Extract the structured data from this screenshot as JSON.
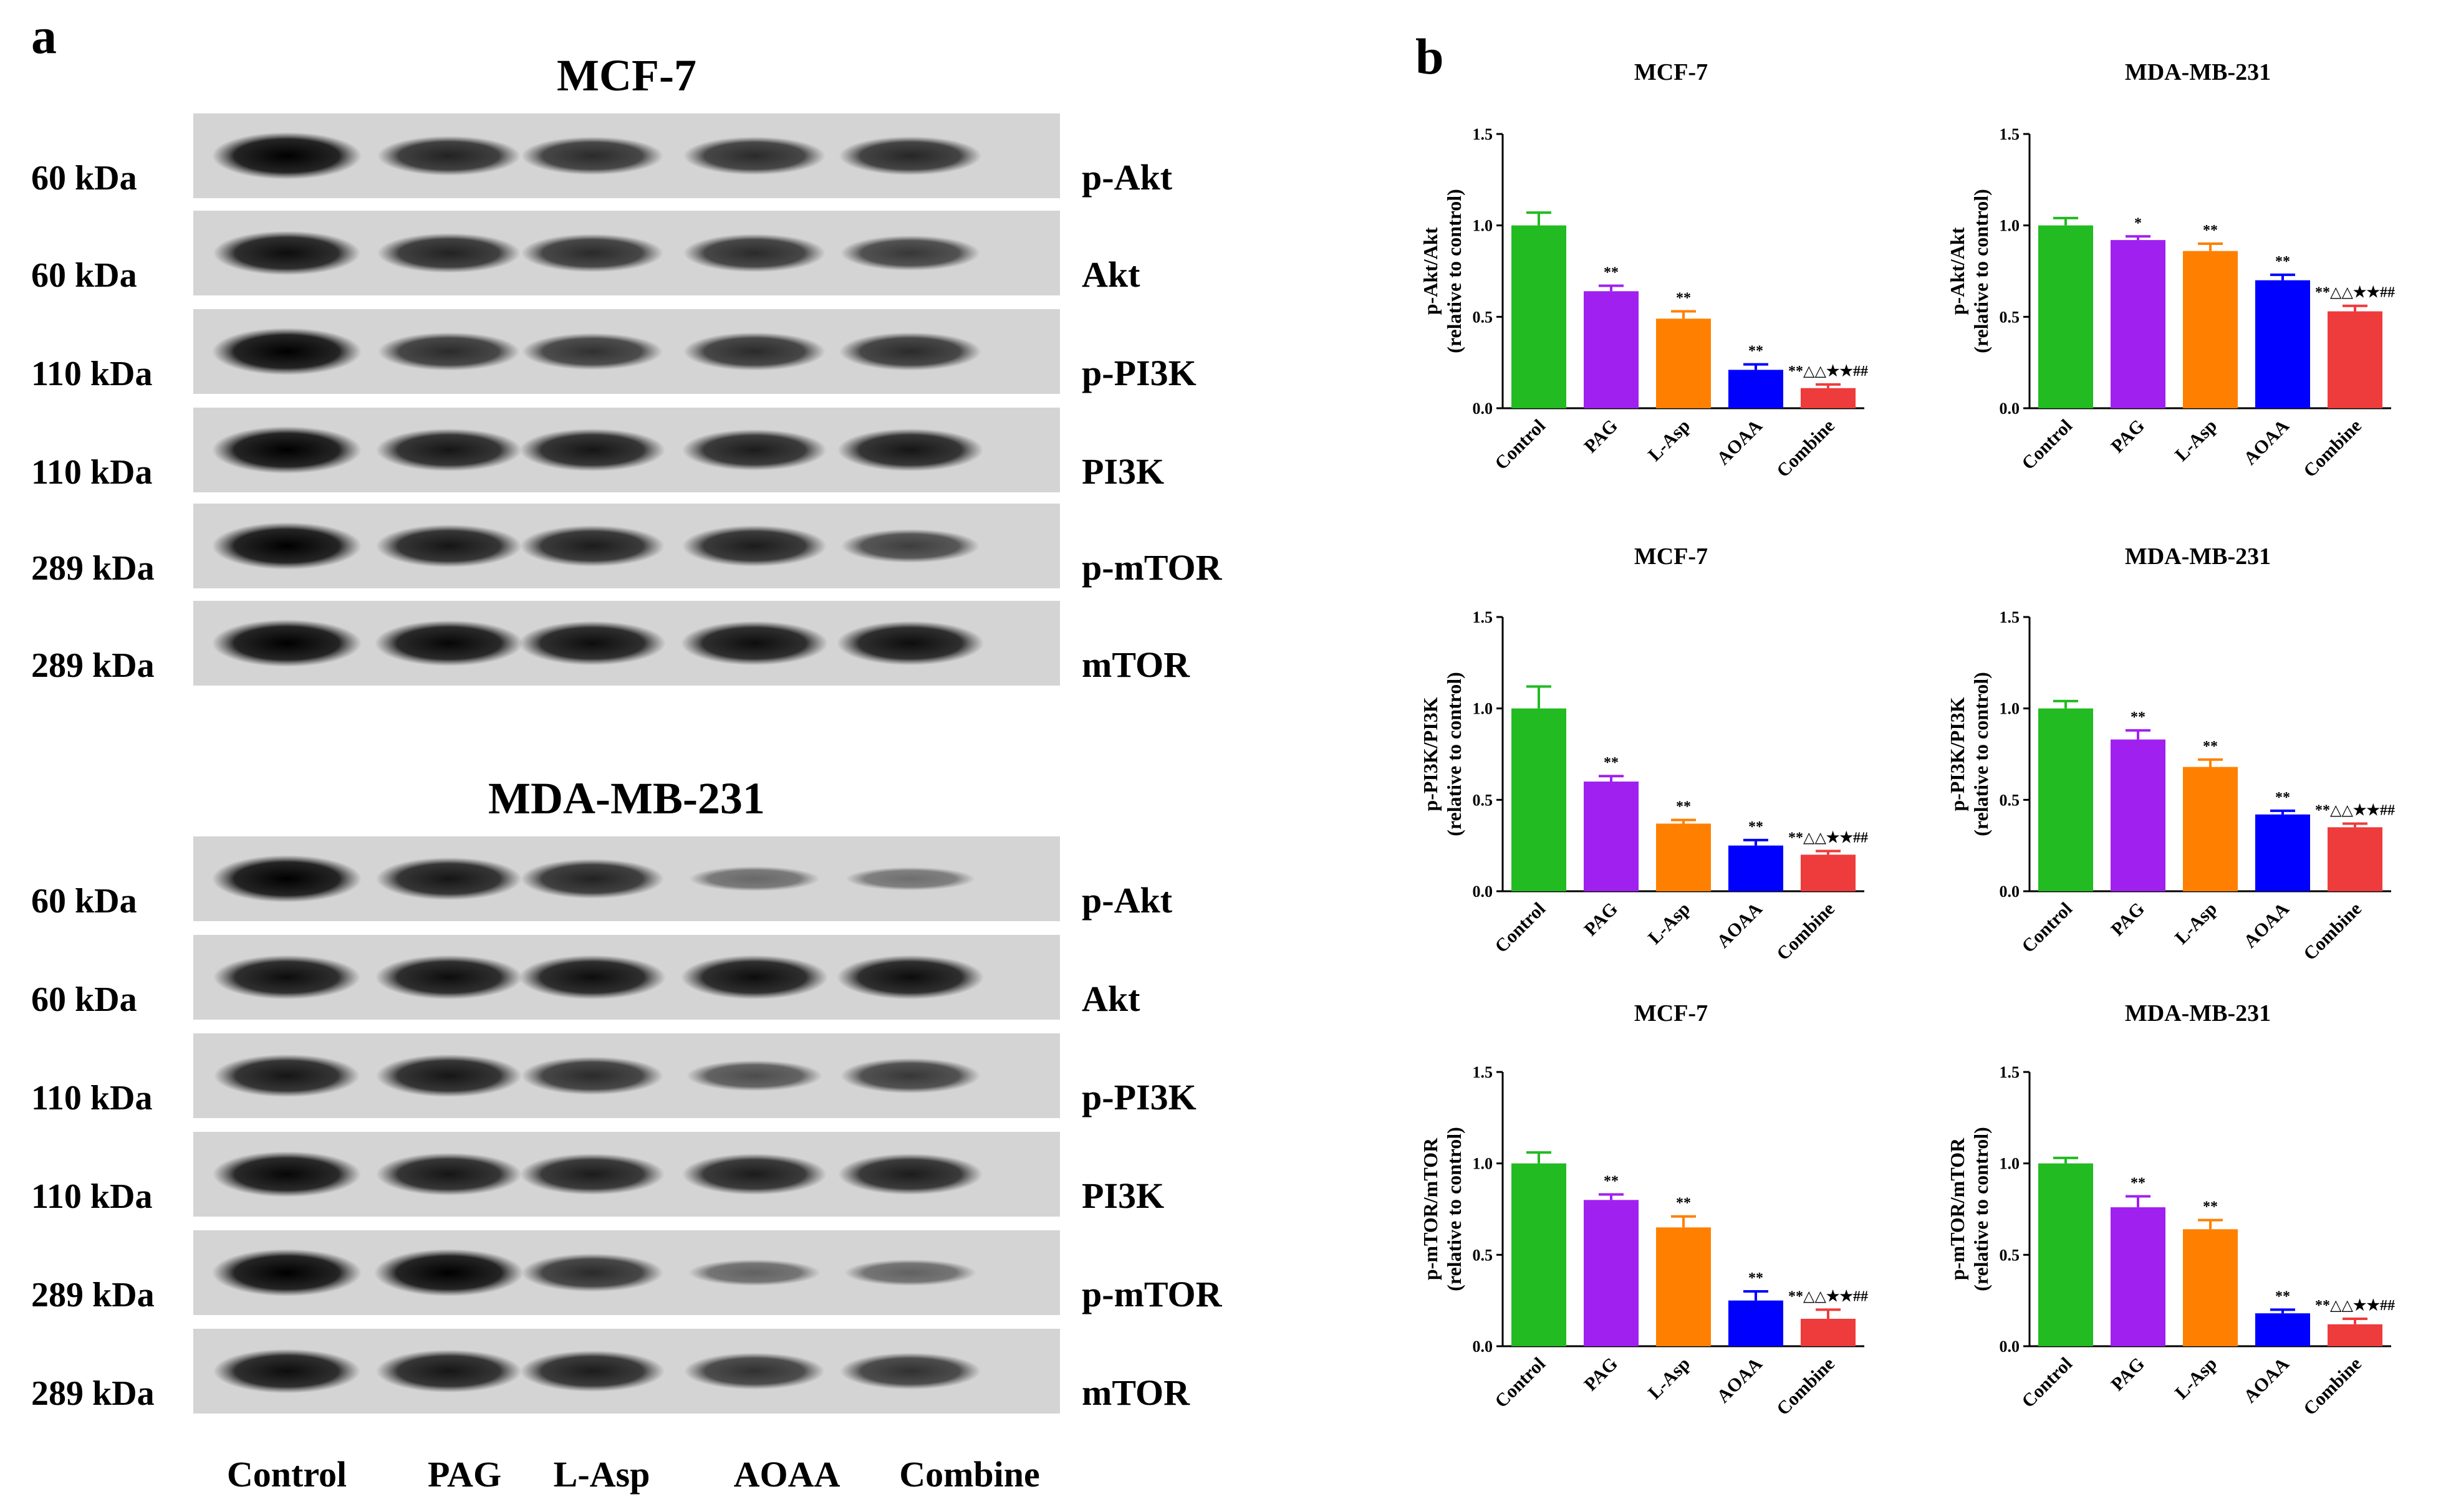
{
  "panels": {
    "a": "a",
    "b": "b"
  },
  "blots": [
    {
      "title": "MCF-7",
      "rows": [
        {
          "kda": "60 kDa",
          "protein": "p-Akt"
        },
        {
          "kda": "60 kDa",
          "protein": "Akt"
        },
        {
          "kda": "110 kDa",
          "protein": "p-PI3K"
        },
        {
          "kda": "110 kDa",
          "protein": "PI3K"
        },
        {
          "kda": "289 kDa",
          "protein": "p-mTOR"
        },
        {
          "kda": "289 kDa",
          "protein": "mTOR"
        }
      ],
      "band_intensity": [
        [
          1.0,
          0.75,
          0.7,
          0.7,
          0.72
        ],
        [
          0.9,
          0.75,
          0.7,
          0.7,
          0.6
        ],
        [
          1.0,
          0.7,
          0.65,
          0.7,
          0.7
        ],
        [
          1.0,
          0.85,
          0.85,
          0.8,
          0.85
        ],
        [
          1.0,
          0.85,
          0.8,
          0.8,
          0.55
        ],
        [
          1.0,
          0.95,
          0.9,
          0.9,
          0.9
        ]
      ]
    },
    {
      "title": "MDA-MB-231",
      "rows": [
        {
          "kda": "60 kDa",
          "protein": "p-Akt"
        },
        {
          "kda": "60 kDa",
          "protein": "Akt"
        },
        {
          "kda": "110 kDa",
          "protein": "p-PI3K"
        },
        {
          "kda": "110 kDa",
          "protein": "PI3K"
        },
        {
          "kda": "289 kDa",
          "protein": "p-mTOR"
        },
        {
          "kda": "289 kDa",
          "protein": "mTOR"
        }
      ],
      "band_intensity": [
        [
          1.0,
          0.85,
          0.75,
          0.25,
          0.2
        ],
        [
          0.9,
          0.9,
          0.9,
          0.9,
          0.9
        ],
        [
          0.85,
          0.85,
          0.7,
          0.45,
          0.6
        ],
        [
          0.95,
          0.85,
          0.8,
          0.8,
          0.8
        ],
        [
          1.0,
          1.0,
          0.7,
          0.3,
          0.3
        ],
        [
          0.9,
          0.85,
          0.8,
          0.65,
          0.65
        ]
      ]
    }
  ],
  "conditions": [
    "Control",
    "PAG",
    "L-Asp",
    "AOAA",
    "Combine"
  ],
  "colors": {
    "Control": "#22bb22",
    "PAG": "#a020f0",
    "L-Asp": "#ff8000",
    "AOAA": "#0000ff",
    "Combine": "#ee3b3b"
  },
  "chart_data": [
    {
      "type": "bar",
      "title": "MCF-7",
      "ylabel": "p-Akt/Akt\n(relative to control)",
      "categories": [
        "Control",
        "PAG",
        "L-Asp",
        "AOAA",
        "Combine"
      ],
      "values": [
        1.0,
        0.64,
        0.49,
        0.21,
        0.11
      ],
      "errors": [
        0.07,
        0.03,
        0.04,
        0.03,
        0.02
      ],
      "annotations": [
        "",
        "**",
        "**",
        "**",
        "**△△★★##"
      ],
      "ylim": [
        0,
        1.5
      ],
      "yticks": [
        "0.0",
        "0.5",
        "1.0",
        "1.5"
      ]
    },
    {
      "type": "bar",
      "title": "MDA-MB-231",
      "ylabel": "p-Akt/Akt\n(relative to control)",
      "categories": [
        "Control",
        "PAG",
        "L-Asp",
        "AOAA",
        "Combine"
      ],
      "values": [
        1.0,
        0.92,
        0.86,
        0.7,
        0.53
      ],
      "errors": [
        0.04,
        0.02,
        0.04,
        0.03,
        0.03
      ],
      "annotations": [
        "",
        "*",
        "**",
        "**",
        "**△△★★##"
      ],
      "ylim": [
        0,
        1.5
      ],
      "yticks": [
        "0.0",
        "0.5",
        "1.0",
        "1.5"
      ]
    },
    {
      "type": "bar",
      "title": "MCF-7",
      "ylabel": "p-PI3K/PI3K\n(relative to control)",
      "categories": [
        "Control",
        "PAG",
        "L-Asp",
        "AOAA",
        "Combine"
      ],
      "values": [
        1.0,
        0.6,
        0.37,
        0.25,
        0.2
      ],
      "errors": [
        0.12,
        0.03,
        0.02,
        0.03,
        0.02
      ],
      "annotations": [
        "",
        "**",
        "**",
        "**",
        "**△△★★##"
      ],
      "ylim": [
        0,
        1.5
      ],
      "yticks": [
        "0.0",
        "0.5",
        "1.0",
        "1.5"
      ]
    },
    {
      "type": "bar",
      "title": "MDA-MB-231",
      "ylabel": "p-PI3K/PI3K\n(relative to control)",
      "categories": [
        "Control",
        "PAG",
        "L-Asp",
        "AOAA",
        "Combine"
      ],
      "values": [
        1.0,
        0.83,
        0.68,
        0.42,
        0.35
      ],
      "errors": [
        0.04,
        0.05,
        0.04,
        0.02,
        0.02
      ],
      "annotations": [
        "",
        "**",
        "**",
        "**",
        "**△△★★##"
      ],
      "ylim": [
        0,
        1.5
      ],
      "yticks": [
        "0.0",
        "0.5",
        "1.0",
        "1.5"
      ]
    },
    {
      "type": "bar",
      "title": "MCF-7",
      "ylabel": "p-mTOR/mTOR\n(relative to control)",
      "categories": [
        "Control",
        "PAG",
        "L-Asp",
        "AOAA",
        "Combine"
      ],
      "values": [
        1.0,
        0.8,
        0.65,
        0.25,
        0.15
      ],
      "errors": [
        0.06,
        0.03,
        0.06,
        0.05,
        0.05
      ],
      "annotations": [
        "",
        "**",
        "**",
        "**",
        "**△△★★##"
      ],
      "ylim": [
        0,
        1.5
      ],
      "yticks": [
        "0.0",
        "0.5",
        "1.0",
        "1.5"
      ]
    },
    {
      "type": "bar",
      "title": "MDA-MB-231",
      "ylabel": "p-mTOR/mTOR\n(relative to control)",
      "categories": [
        "Control",
        "PAG",
        "L-Asp",
        "AOAA",
        "Combine"
      ],
      "values": [
        1.0,
        0.76,
        0.64,
        0.18,
        0.12
      ],
      "errors": [
        0.03,
        0.06,
        0.05,
        0.02,
        0.03
      ],
      "annotations": [
        "",
        "**",
        "**",
        "**",
        "**△△★★##"
      ],
      "ylim": [
        0,
        1.5
      ],
      "yticks": [
        "0.0",
        "0.5",
        "1.0",
        "1.5"
      ]
    }
  ]
}
